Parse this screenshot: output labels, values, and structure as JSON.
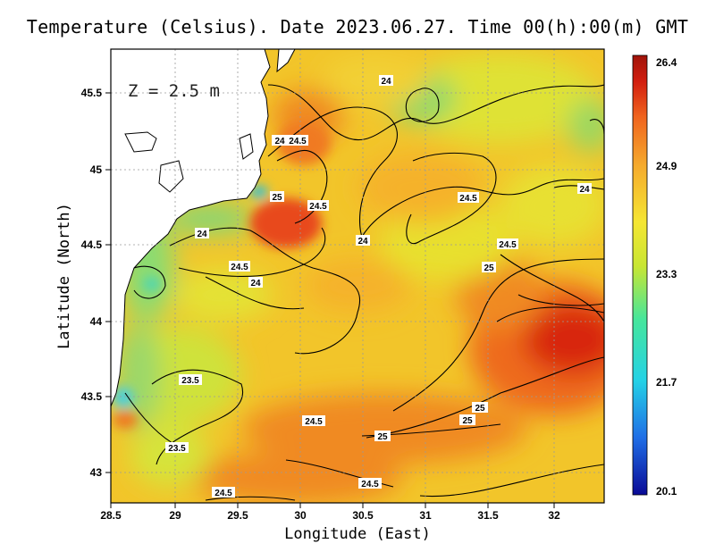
{
  "title": "Temperature (Celsius). Date 2023.06.27. Time 00(h):00(m) GMT",
  "depth_label": "Z = 2.5 m",
  "xlabel": "Longitude (East)",
  "ylabel": "Latitude (North)",
  "x_ticks": [
    "28.5",
    "29",
    "29.5",
    "30",
    "30.5",
    "31",
    "31.5",
    "32"
  ],
  "y_ticks": [
    "45.5",
    "45",
    "44.5",
    "44",
    "43.5",
    "43"
  ],
  "colorbar": {
    "labels": [
      "26.4",
      "24.9",
      "23.3",
      "21.7",
      "20.1"
    ],
    "colors": [
      "#0a0a96",
      "#1f6ee6",
      "#24d2e6",
      "#46e69b",
      "#c8e632",
      "#f5e632",
      "#f5aa2d",
      "#f0641e",
      "#d21e0f",
      "#a0140a"
    ]
  },
  "contour_labels": [
    "24",
    "24",
    "24.5",
    "25",
    "24.5",
    "24",
    "24.5",
    "24",
    "24.5",
    "24",
    "24.5",
    "25",
    "24",
    "23.5",
    "24.5",
    "25",
    "25",
    "25",
    "23.5",
    "24.5",
    "24.5"
  ],
  "chart_data": {
    "type": "heatmap",
    "title": "Temperature (Celsius). Date 2023.06.27. Time 00(h):00(m) GMT",
    "xlabel": "Longitude (East)",
    "ylabel": "Latitude (North)",
    "xlim": [
      28.5,
      32.4
    ],
    "ylim": [
      42.8,
      45.8
    ],
    "colorbar_range": [
      20.1,
      26.4
    ],
    "colorbar_ticks": [
      26.4,
      24.9,
      23.3,
      21.7,
      20.1
    ],
    "grid": true
  }
}
